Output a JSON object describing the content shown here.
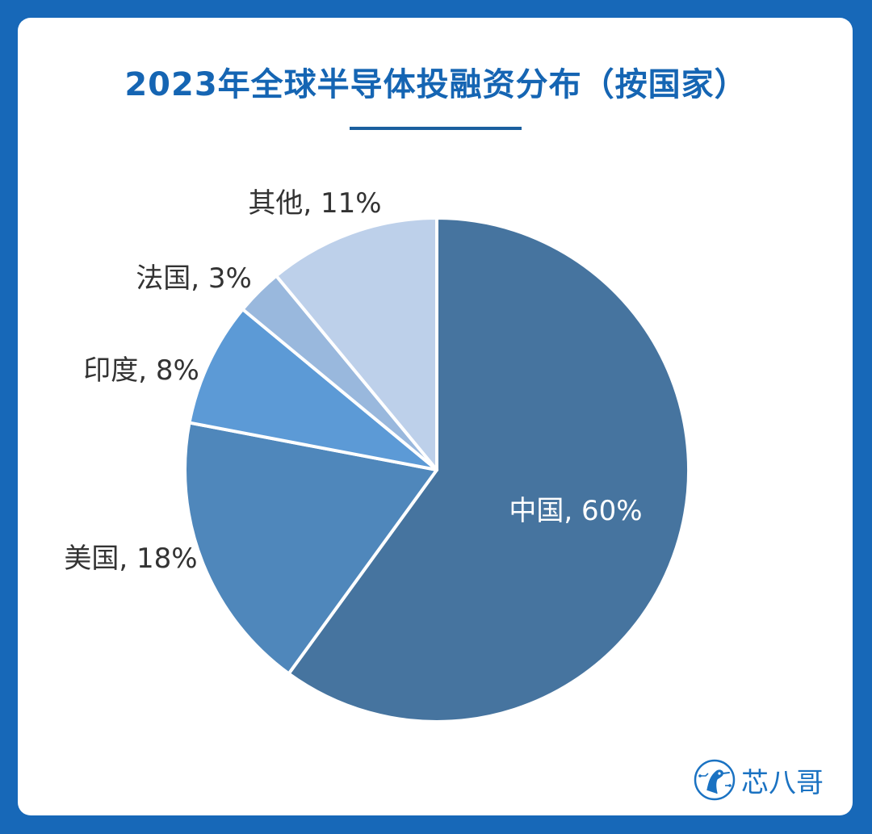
{
  "chart_data": {
    "type": "pie",
    "title": "2023年全球半导体投融资分布（按国家）",
    "slices": [
      {
        "label": "中国",
        "value": 60,
        "color": "#46749f"
      },
      {
        "label": "美国",
        "value": 18,
        "color": "#4f87bb"
      },
      {
        "label": "印度",
        "value": 8,
        "color": "#5c9ad6"
      },
      {
        "label": "法国",
        "value": 3,
        "color": "#99b8dd"
      },
      {
        "label": "其他",
        "value": 11,
        "color": "#bdd0ea"
      }
    ],
    "value_suffix": "%",
    "label_separator": ", "
  },
  "brand": {
    "name": "芯八哥"
  },
  "colors": {
    "background": "#1768b8",
    "title": "#1565b3",
    "label_outside": "#333333",
    "label_inside": "#ffffff"
  }
}
